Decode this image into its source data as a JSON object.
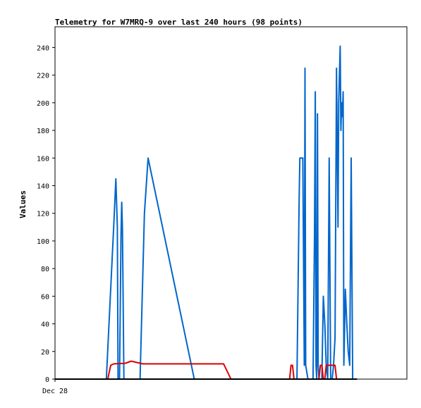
{
  "chart_data": {
    "type": "line",
    "title": "Telemetry for W7MRQ-9 over last 240 hours (98 points)",
    "xlabel": "",
    "ylabel": "Values",
    "x_tick_labels": [
      "Dec 28"
    ],
    "ylim": [
      0,
      255
    ],
    "y_ticks": [
      0,
      20,
      40,
      60,
      80,
      100,
      120,
      140,
      160,
      180,
      200,
      220,
      240
    ],
    "xlim": [
      0,
      240
    ],
    "grid": false,
    "legend": "none",
    "series": [
      {
        "color": "#0066cc",
        "points": [
          [
            0,
            0
          ],
          [
            35,
            0
          ],
          [
            40,
            110
          ],
          [
            41.5,
            145
          ],
          [
            42.5,
            110
          ],
          [
            43,
            0
          ],
          [
            44,
            0
          ],
          [
            45,
            105
          ],
          [
            45.5,
            128
          ],
          [
            46,
            110
          ],
          [
            47,
            0
          ],
          [
            58,
            0
          ],
          [
            61,
            120
          ],
          [
            63.5,
            160
          ],
          [
            95,
            0
          ],
          [
            165,
            0
          ],
          [
            166.5,
            130
          ],
          [
            167,
            160
          ],
          [
            169,
            160
          ],
          [
            170,
            10
          ],
          [
            170.5,
            225
          ],
          [
            171,
            10
          ],
          [
            172.5,
            0
          ],
          [
            176,
            0
          ],
          [
            177,
            105
          ],
          [
            177.5,
            208
          ],
          [
            178,
            10
          ],
          [
            178.5,
            0
          ],
          [
            179,
            192
          ],
          [
            179.5,
            10
          ],
          [
            180,
            0
          ],
          [
            182,
            0
          ],
          [
            183,
            60
          ],
          [
            184,
            40
          ],
          [
            185,
            10
          ],
          [
            186,
            0
          ],
          [
            187,
            160
          ],
          [
            188,
            0
          ],
          [
            189,
            0
          ],
          [
            190,
            10
          ],
          [
            191,
            30
          ],
          [
            192,
            225
          ],
          [
            193,
            110
          ],
          [
            193.5,
            200
          ],
          [
            194.5,
            241
          ],
          [
            195,
            180
          ],
          [
            195.5,
            200
          ],
          [
            196,
            190
          ],
          [
            196.5,
            208
          ],
          [
            197,
            10
          ],
          [
            198,
            65
          ],
          [
            199,
            40
          ],
          [
            200,
            20
          ],
          [
            201,
            10
          ],
          [
            202,
            160
          ],
          [
            203,
            0
          ],
          [
            206,
            0
          ]
        ]
      },
      {
        "color": "#dd0000",
        "points": [
          [
            0,
            0
          ],
          [
            36,
            0
          ],
          [
            38,
            10
          ],
          [
            40,
            11
          ],
          [
            48,
            11.5
          ],
          [
            52,
            13
          ],
          [
            56,
            12
          ],
          [
            60,
            11
          ],
          [
            115,
            11
          ],
          [
            120,
            0
          ],
          [
            160,
            0
          ],
          [
            161,
            10
          ],
          [
            162,
            10
          ],
          [
            163,
            0
          ],
          [
            180,
            0
          ],
          [
            181,
            10
          ],
          [
            182,
            10
          ],
          [
            183,
            0
          ],
          [
            184,
            0
          ],
          [
            185,
            10
          ],
          [
            191,
            10
          ],
          [
            192,
            0
          ],
          [
            200,
            0
          ]
        ]
      },
      {
        "color": "#000000",
        "points": [
          [
            0,
            0
          ],
          [
            206,
            0
          ]
        ]
      }
    ]
  }
}
